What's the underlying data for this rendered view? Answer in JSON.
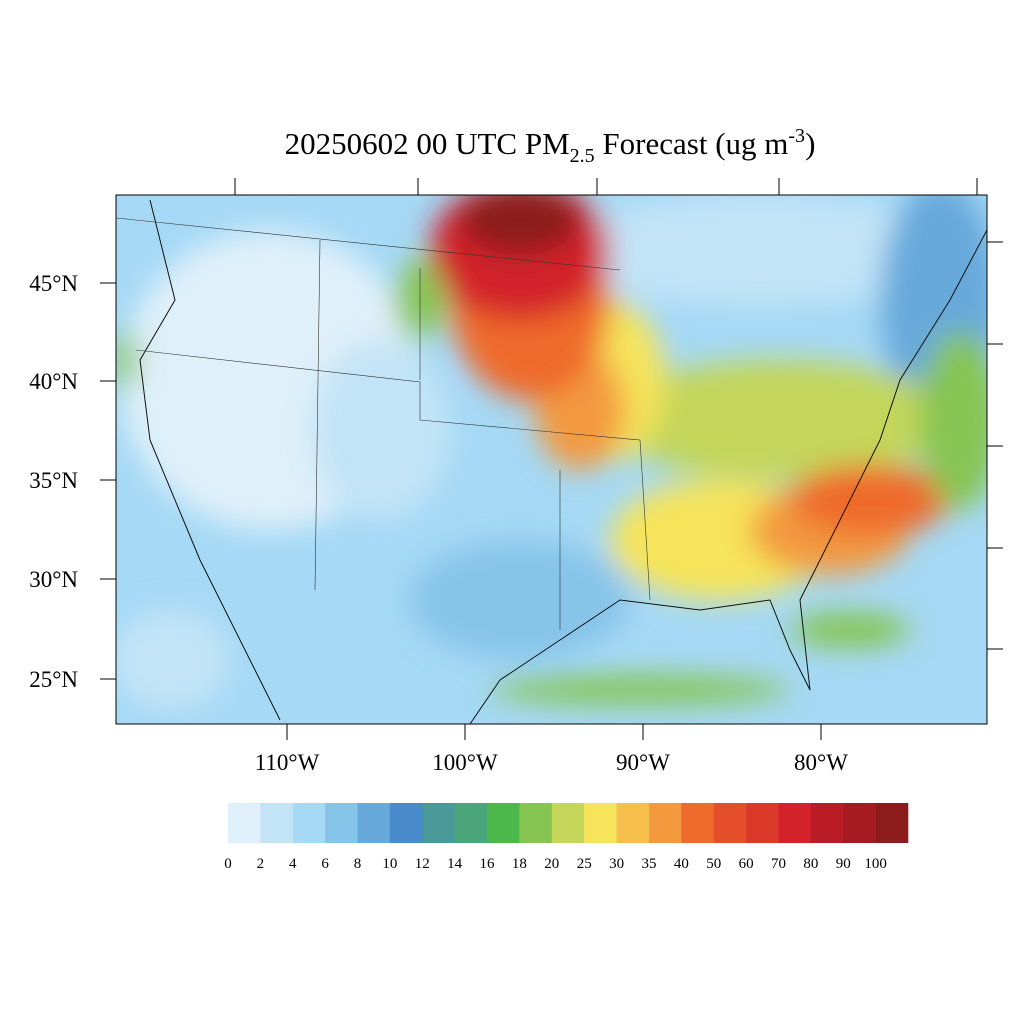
{
  "title": {
    "main": "20250602 00 UTC PM",
    "sub": "2.5",
    "rest": " Forecast (ug m",
    "sup": "-3",
    "end": ")"
  },
  "lat_labels": [
    "45°N",
    "40°N",
    "35°N",
    "30°N",
    "25°N"
  ],
  "lon_labels": [
    "110°W",
    "100°W",
    "90°W",
    "80°W"
  ],
  "colorbar": {
    "levels": [
      0,
      2,
      4,
      6,
      8,
      10,
      12,
      14,
      16,
      18,
      20,
      25,
      30,
      35,
      40,
      50,
      60,
      70,
      80,
      90,
      100
    ],
    "colors": [
      "#dff0fa",
      "#c3e4f7",
      "#a5d9f5",
      "#87c4ea",
      "#67a9db",
      "#4a8bcb",
      "#4b9a9a",
      "#4aa67a",
      "#4cb74a",
      "#86c552",
      "#c3d65a",
      "#f6e45a",
      "#f6bf4c",
      "#f39a3f",
      "#ef6b2c",
      "#e54e2b",
      "#db3a2a",
      "#d3222a",
      "#b91c24",
      "#a61b22",
      "#8c1b1c"
    ]
  }
}
